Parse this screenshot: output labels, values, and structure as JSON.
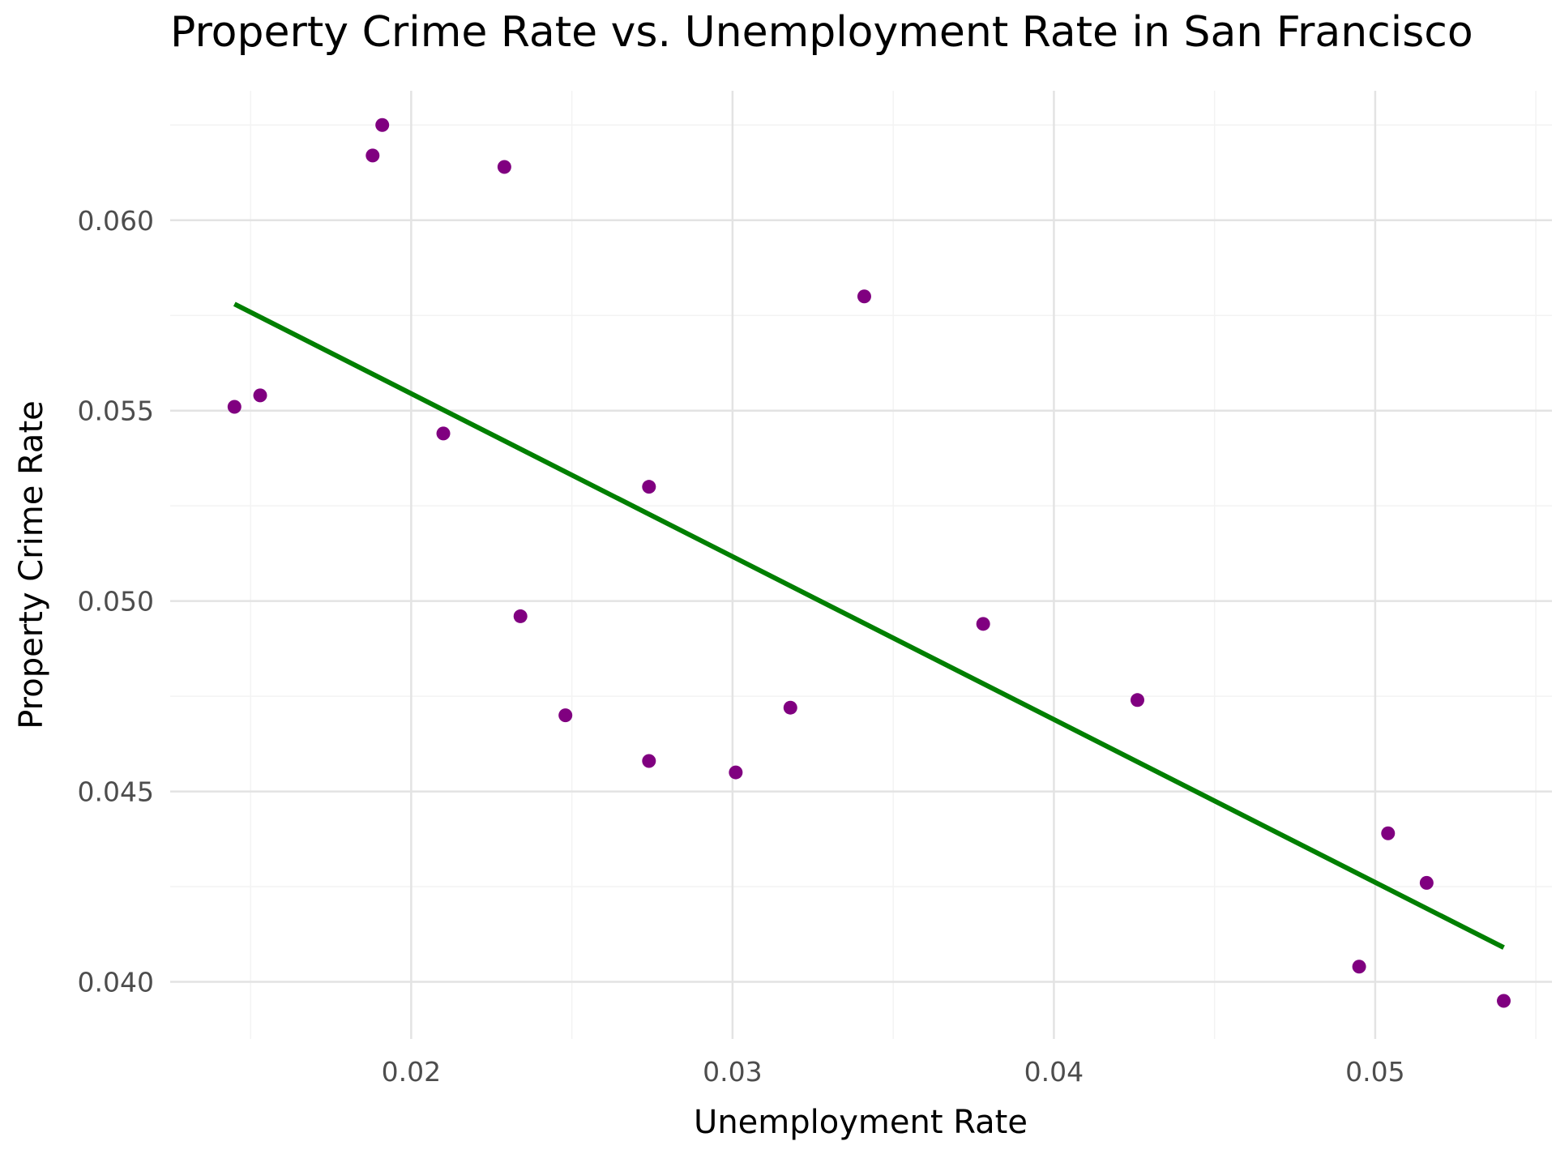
{
  "chart_data": {
    "type": "scatter",
    "title": "Property Crime Rate vs. Unemployment Rate in San Francisco",
    "xlabel": "Unemployment Rate",
    "ylabel": "Property Crime Rate",
    "xlim": [
      0.0125,
      0.0555
    ],
    "ylim": [
      0.0385,
      0.0634
    ],
    "x_ticks": [
      0.02,
      0.03,
      0.04,
      0.05
    ],
    "x_tick_labels": [
      "0.02",
      "0.03",
      "0.04",
      "0.05"
    ],
    "y_ticks": [
      0.04,
      0.045,
      0.05,
      0.055,
      0.06
    ],
    "y_tick_labels": [
      "0.040",
      "0.045",
      "0.050",
      "0.055",
      "0.060"
    ],
    "grid": true,
    "series": [
      {
        "kind": "points",
        "color": "#800080",
        "x": [
          0.0145,
          0.0153,
          0.0188,
          0.0191,
          0.021,
          0.0229,
          0.0234,
          0.0248,
          0.0274,
          0.0274,
          0.0301,
          0.0318,
          0.0341,
          0.0378,
          0.0426,
          0.0495,
          0.0504,
          0.0516,
          0.054
        ],
        "y": [
          0.0551,
          0.0554,
          0.0617,
          0.0625,
          0.0544,
          0.0614,
          0.0496,
          0.047,
          0.053,
          0.0458,
          0.0455,
          0.0472,
          0.058,
          0.0494,
          0.0474,
          0.0404,
          0.0439,
          0.0426,
          0.0395
        ]
      },
      {
        "kind": "fit-line",
        "color": "#007f00",
        "x": [
          0.0145,
          0.054
        ],
        "y": [
          0.0578,
          0.0409
        ]
      }
    ]
  }
}
